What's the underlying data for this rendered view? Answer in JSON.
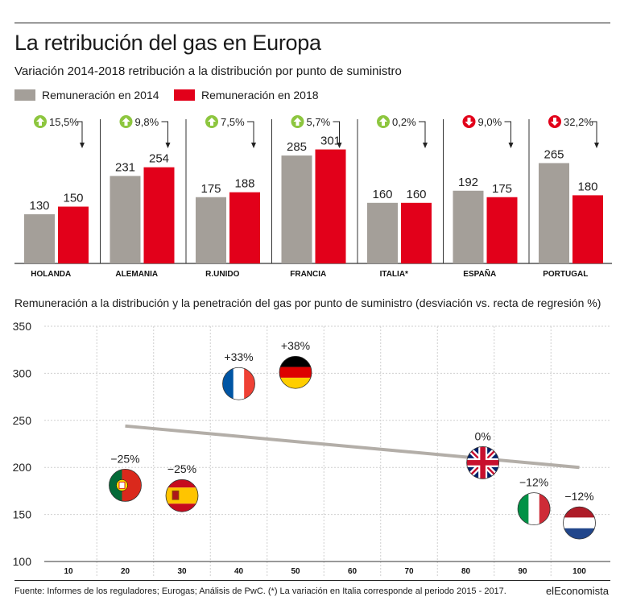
{
  "title": "La retribución del gas en Europa",
  "subtitle": "Variación 2014-2018 retribución a la distribución por punto de suministro",
  "legend": {
    "items": [
      {
        "label": "Remuneración en 2014",
        "color": "#a49f99"
      },
      {
        "label": "Remuneración en 2018",
        "color": "#e2001a"
      }
    ]
  },
  "scatter_title": "Remuneración a la distribución y la penetración del gas por punto de suministro (desviación vs. recta de regresión %)",
  "footer": "Fuente: Informes de los reguladores; Eurogas; Análisis de PwC. (*) La variación en Italia corresponde al periodo 2015 - 2017.",
  "brand": "elEconomista",
  "colors": {
    "gray": "#a49f99",
    "red": "#e2001a",
    "up": "#8dc63f",
    "down": "#e2001a",
    "regression": "#b3aea8"
  },
  "chart_data": [
    {
      "type": "bar",
      "categories": [
        "HOLANDA",
        "ALEMANIA",
        "R.UNIDO",
        "FRANCIA",
        "ITALIA*",
        "ESPAÑA",
        "PORTUGAL"
      ],
      "series": [
        {
          "name": "Remuneración en 2014",
          "values": [
            130,
            231,
            175,
            285,
            160,
            192,
            265
          ]
        },
        {
          "name": "Remuneración en 2018",
          "values": [
            150,
            254,
            188,
            301,
            160,
            175,
            180
          ]
        }
      ],
      "changes": [
        {
          "text": "15,5%",
          "direction": "up"
        },
        {
          "text": "9,8%",
          "direction": "up"
        },
        {
          "text": "7,5%",
          "direction": "up"
        },
        {
          "text": "5,7%",
          "direction": "up"
        },
        {
          "text": "0,2%",
          "direction": "up"
        },
        {
          "text": "9,0%",
          "direction": "down"
        },
        {
          "text": "32,2%",
          "direction": "down"
        }
      ],
      "ylim": [
        0,
        330
      ]
    },
    {
      "type": "scatter",
      "x_ticks": [
        10,
        20,
        30,
        40,
        50,
        60,
        70,
        80,
        90,
        100
      ],
      "y_ticks": [
        100,
        150,
        200,
        250,
        300,
        350
      ],
      "xlim": [
        5,
        105
      ],
      "ylim": [
        100,
        350
      ],
      "grid": "vertical dashed",
      "regression": {
        "x": [
          20,
          100
        ],
        "y": [
          244,
          200
        ]
      },
      "points": [
        {
          "country": "Portugal",
          "flag": "portugal",
          "x": 20,
          "y": 181,
          "label": "−25%"
        },
        {
          "country": "España",
          "flag": "spain",
          "x": 30,
          "y": 170,
          "label": "−25%"
        },
        {
          "country": "Francia",
          "flag": "france",
          "x": 40,
          "y": 289,
          "label": "+33%"
        },
        {
          "country": "Alemania",
          "flag": "germany",
          "x": 50,
          "y": 301,
          "label": "+38%"
        },
        {
          "country": "R.Unido",
          "flag": "uk",
          "x": 83,
          "y": 205,
          "label": "0%"
        },
        {
          "country": "Italia",
          "flag": "italy",
          "x": 92,
          "y": 156,
          "label": "−12%"
        },
        {
          "country": "Holanda",
          "flag": "netherlands",
          "x": 100,
          "y": 141,
          "label": "−12%"
        }
      ]
    }
  ]
}
